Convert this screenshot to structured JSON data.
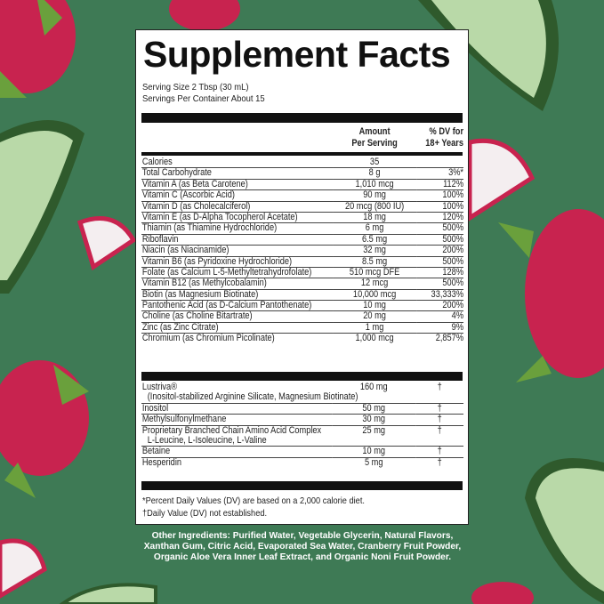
{
  "colors": {
    "background": "#3e7a55",
    "dragonfruit": "#c8234f",
    "avocado": "#b9d9a8",
    "label": "#ffffff"
  },
  "title": "Supplement Facts",
  "serving_size": "Serving Size 2 Tbsp (30 mL)",
  "servings_per_container": "Servings Per Container About 15",
  "header": {
    "amount_1": "Amount",
    "amount_2": "Per Serving",
    "dv_1": "% DV for",
    "dv_2": "18+ Years"
  },
  "rows": [
    {
      "name": "Calories",
      "amount": "35",
      "dv": ""
    },
    {
      "name": "Total Carbohydrate",
      "amount": "8 g",
      "dv": "3%*"
    },
    {
      "name": "Vitamin A (as Beta Carotene)",
      "amount": "1,010 mcg",
      "dv": "112%"
    },
    {
      "name": "Vitamin C (Ascorbic Acid)",
      "amount": "90 mg",
      "dv": "100%"
    },
    {
      "name": "Vitamin D (as Cholecalciferol)",
      "amount": "20 mcg (800 IU)",
      "dv": "100%"
    },
    {
      "name": "Vitamin E (as D-Alpha Tocopherol Acetate)",
      "amount": "18 mg",
      "dv": "120%"
    },
    {
      "name": "Thiamin (as Thiamine Hydrochloride)",
      "amount": "6 mg",
      "dv": "500%"
    },
    {
      "name": "Riboflavin",
      "amount": "6.5 mg",
      "dv": "500%"
    },
    {
      "name": "Niacin (as Niacinamide)",
      "amount": "32 mg",
      "dv": "200%"
    },
    {
      "name": "Vitamin B6 (as Pyridoxine Hydrochloride)",
      "amount": "8.5 mg",
      "dv": "500%"
    },
    {
      "name": "Folate (as Calcium L-5-Methyltetrahydrofolate)",
      "amount": "510 mcg DFE",
      "dv": "128%"
    },
    {
      "name": "Vitamin B12 (as Methylcobalamin)",
      "amount": "12 mcg",
      "dv": "500%"
    },
    {
      "name": "Biotin (as Magnesium Biotinate)",
      "amount": "10,000 mcg",
      "dv": "33,333%"
    },
    {
      "name": "Pantothenic Acid (as D-Calcium Pantothenate)",
      "amount": "10 mg",
      "dv": "200%"
    },
    {
      "name": "Choline (as Choline Bitartrate)",
      "amount": "20 mg",
      "dv": "4%"
    },
    {
      "name": "Zinc (as Zinc Citrate)",
      "amount": "1 mg",
      "dv": "9%"
    },
    {
      "name": "Chromium (as Chromium Picolinate)",
      "amount": "1,000 mcg",
      "dv": "2,857%"
    }
  ],
  "other_rows": [
    {
      "name": "Lustriva®",
      "sub": "(Inositol-stabilized Arginine Silicate, Magnesium Biotinate)",
      "amount": "160 mg",
      "dv": "†"
    },
    {
      "name": "Inositol",
      "sub": "",
      "amount": "50 mg",
      "dv": "†"
    },
    {
      "name": "Methylsulfonylmethane",
      "sub": "",
      "amount": "30 mg",
      "dv": "†"
    },
    {
      "name": "Proprietary Branched Chain Amino Acid Complex",
      "sub": "L-Leucine, L-Isoleucine, L-Valine",
      "amount": "25 mg",
      "dv": "†"
    },
    {
      "name": "Betaine",
      "sub": "",
      "amount": "10 mg",
      "dv": "†"
    },
    {
      "name": "Hesperidin",
      "sub": "",
      "amount": "5 mg",
      "dv": "†"
    }
  ],
  "footnotes": [
    "*Percent Daily Values (DV) are based on a 2,000 calorie diet.",
    "†Daily Value (DV) not established."
  ],
  "other_ingredients": "Other Ingredients: Purified Water, Vegetable Glycerin, Natural Flavors, Xanthan Gum, Citric Acid, Evaporated Sea Water, Cranberry Fruit Powder, Organic Aloe Vera Inner Leaf Extract, and Organic Noni Fruit Powder."
}
